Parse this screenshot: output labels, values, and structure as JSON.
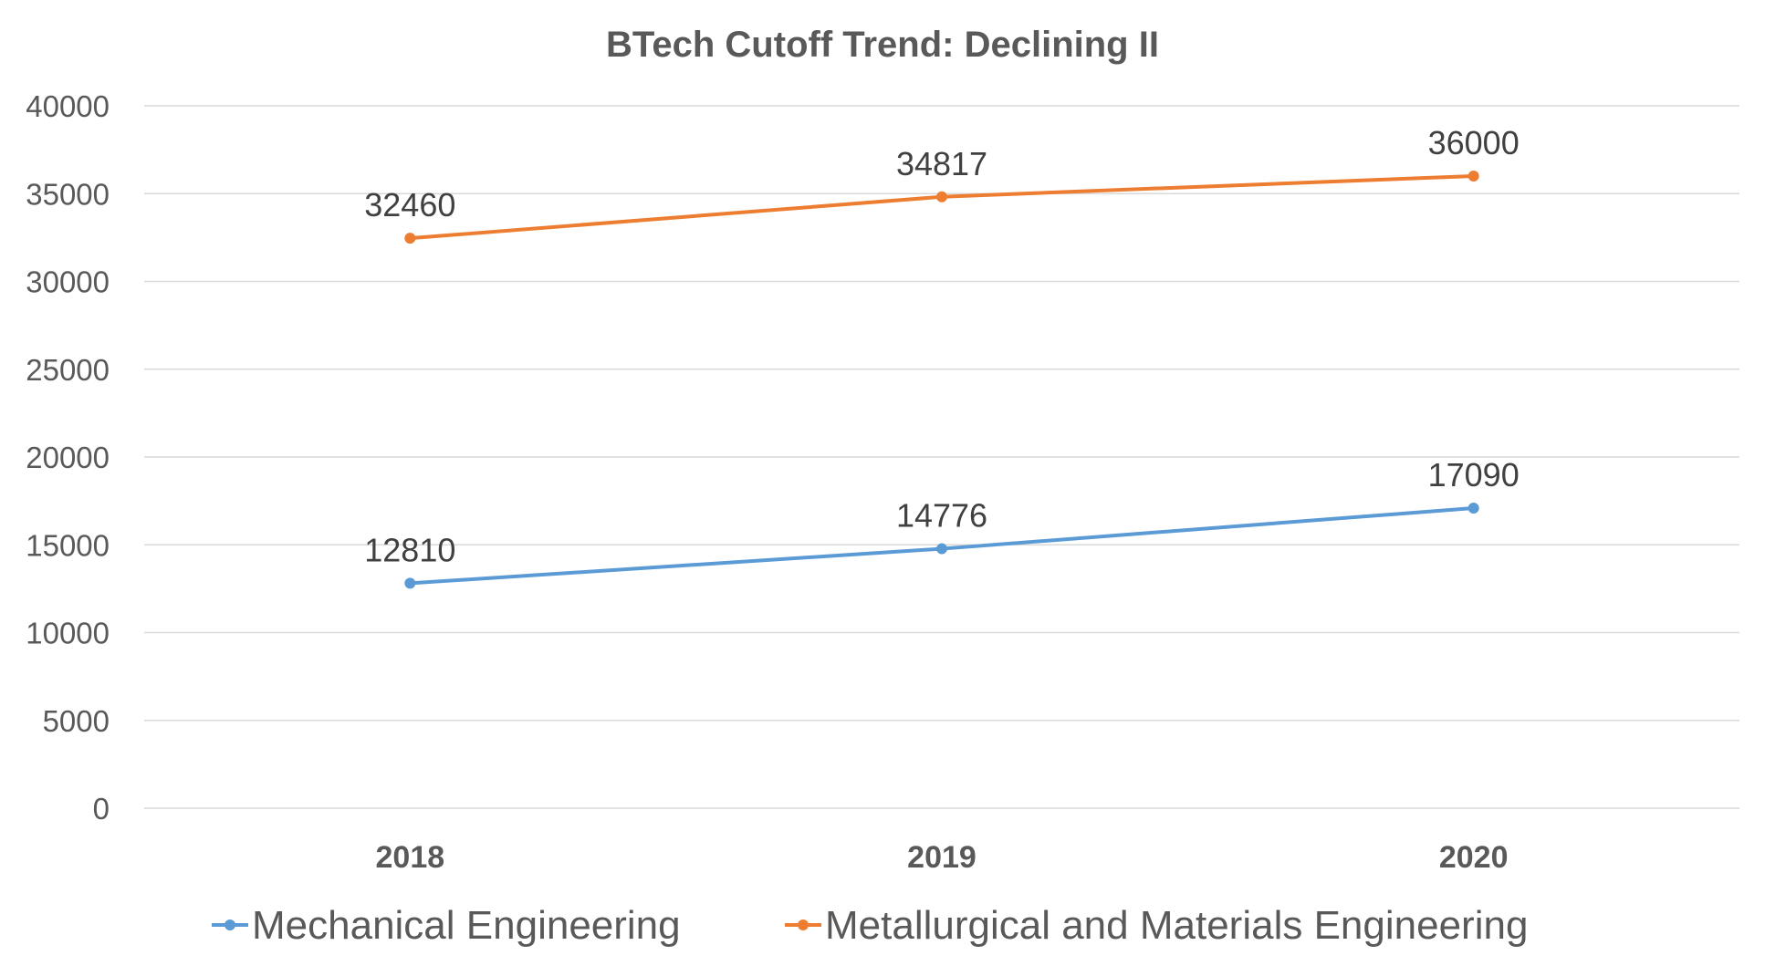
{
  "chart_data": {
    "type": "line",
    "title": "BTech Cutoff Trend: Declining II",
    "categories": [
      "2018",
      "2019",
      "2020"
    ],
    "series": [
      {
        "name": "Mechanical Engineering",
        "values": [
          12810,
          14776,
          17090
        ],
        "color": "#5b9bd5"
      },
      {
        "name": "Metallurgical and Materials Engineering",
        "values": [
          32460,
          34817,
          36000
        ],
        "color": "#ed7d31"
      }
    ],
    "ylim": [
      0,
      40000
    ],
    "yticks": [
      "0",
      "5000",
      "10000",
      "15000",
      "20000",
      "25000",
      "30000",
      "35000",
      "40000"
    ],
    "xlabel": "",
    "ylabel": "",
    "grid": true,
    "legend": "bottom-center",
    "data_labels": true
  }
}
